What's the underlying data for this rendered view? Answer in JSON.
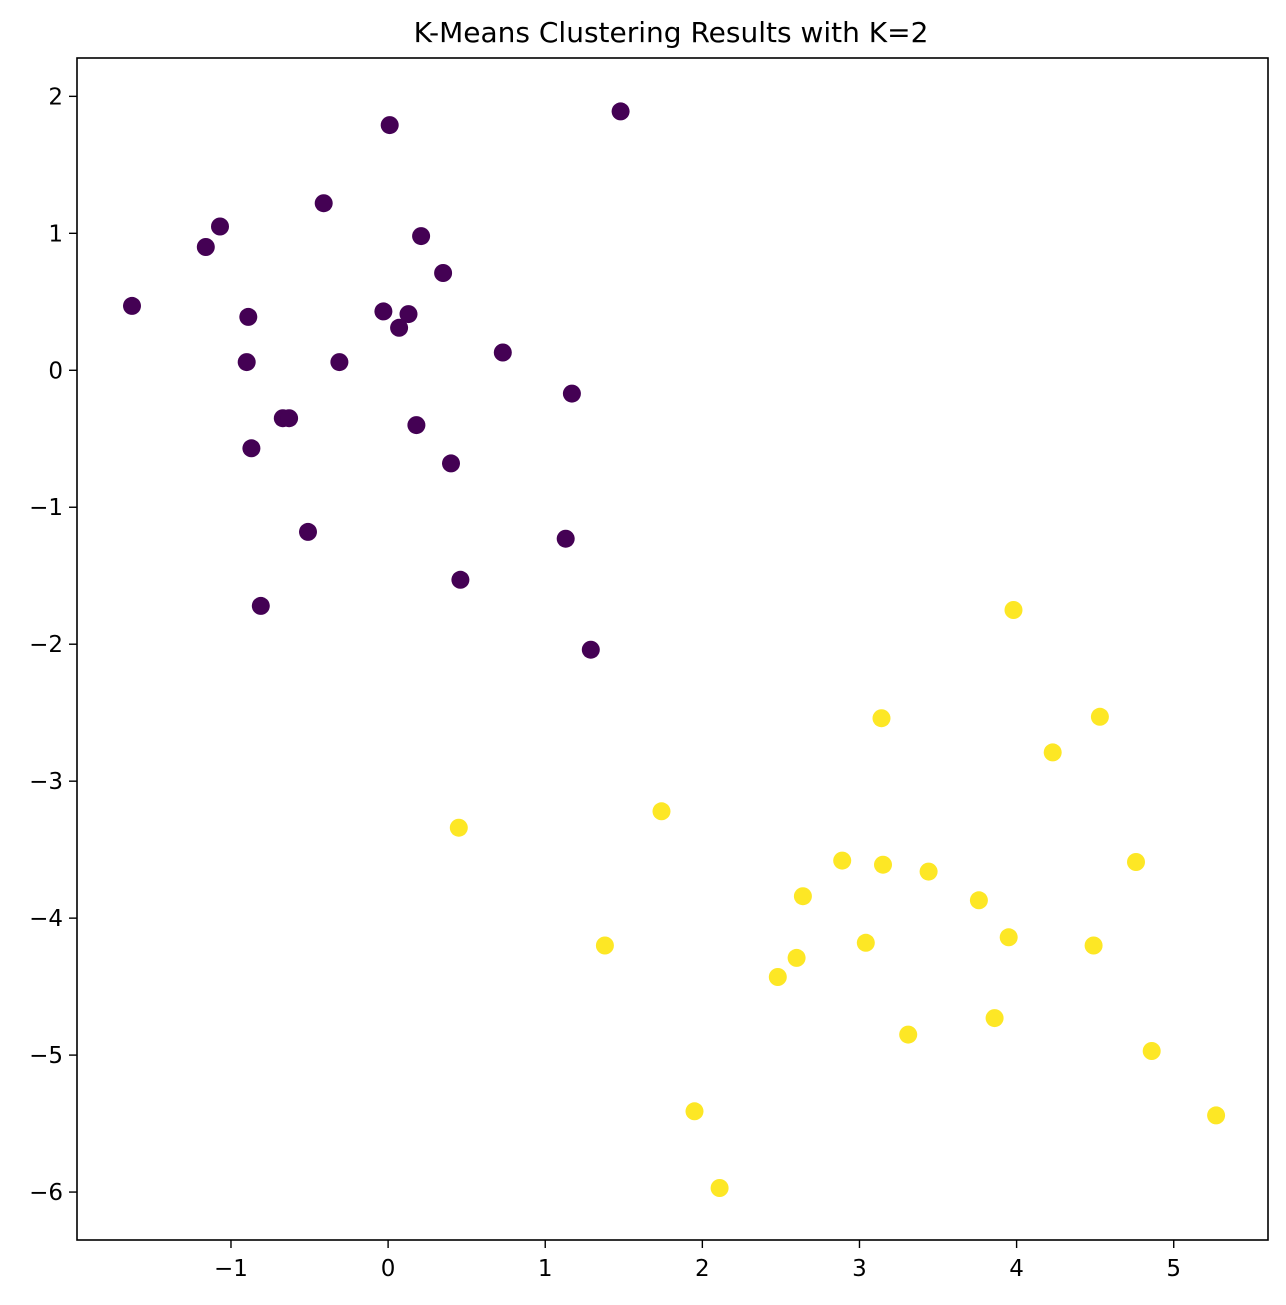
{
  "chart_data": {
    "type": "scatter",
    "title": "K-Means Clustering Results with K=2",
    "xlabel": "",
    "ylabel": "",
    "xlim": [
      -1.98,
      5.6
    ],
    "ylim": [
      -6.35,
      2.28
    ],
    "grid": false,
    "legend": "none",
    "x_ticks": [
      -1,
      0,
      1,
      2,
      3,
      4,
      5
    ],
    "x_tick_labels": [
      "−1",
      "0",
      "1",
      "2",
      "3",
      "4",
      "5"
    ],
    "y_ticks": [
      2,
      1,
      0,
      -1,
      -2,
      -3,
      -4,
      -5,
      -6
    ],
    "y_tick_labels": [
      "2",
      "1",
      "0",
      "−1",
      "−2",
      "−3",
      "−4",
      "−5",
      "−6"
    ],
    "series": [
      {
        "color": "#440154",
        "points": [
          [
            1.48,
            1.89
          ],
          [
            0.01,
            1.79
          ],
          [
            -0.41,
            1.22
          ],
          [
            -1.07,
            1.05
          ],
          [
            -1.16,
            0.9
          ],
          [
            0.21,
            0.98
          ],
          [
            0.35,
            0.71
          ],
          [
            -1.63,
            0.47
          ],
          [
            -0.89,
            0.39
          ],
          [
            -0.03,
            0.43
          ],
          [
            0.13,
            0.41
          ],
          [
            0.07,
            0.31
          ],
          [
            0.73,
            0.13
          ],
          [
            -0.9,
            0.06
          ],
          [
            -0.31,
            0.06
          ],
          [
            1.17,
            -0.17
          ],
          [
            -0.67,
            -0.35
          ],
          [
            -0.63,
            -0.35
          ],
          [
            0.18,
            -0.4
          ],
          [
            -0.87,
            -0.57
          ],
          [
            0.4,
            -0.68
          ],
          [
            -0.51,
            -1.18
          ],
          [
            1.13,
            -1.23
          ],
          [
            0.46,
            -1.53
          ],
          [
            -0.81,
            -1.72
          ],
          [
            1.29,
            -2.04
          ]
        ]
      },
      {
        "color": "#fde725",
        "points": [
          [
            3.98,
            -1.75
          ],
          [
            3.14,
            -2.54
          ],
          [
            4.53,
            -2.53
          ],
          [
            4.23,
            -2.79
          ],
          [
            1.74,
            -3.22
          ],
          [
            0.45,
            -3.34
          ],
          [
            2.89,
            -3.58
          ],
          [
            3.15,
            -3.61
          ],
          [
            3.44,
            -3.66
          ],
          [
            4.76,
            -3.59
          ],
          [
            2.64,
            -3.84
          ],
          [
            3.76,
            -3.87
          ],
          [
            3.95,
            -4.14
          ],
          [
            3.04,
            -4.18
          ],
          [
            1.38,
            -4.2
          ],
          [
            4.49,
            -4.2
          ],
          [
            2.6,
            -4.29
          ],
          [
            2.48,
            -4.43
          ],
          [
            3.31,
            -4.85
          ],
          [
            3.86,
            -4.73
          ],
          [
            4.86,
            -4.97
          ],
          [
            1.95,
            -5.41
          ],
          [
            5.27,
            -5.44
          ],
          [
            2.11,
            -5.97
          ]
        ]
      }
    ]
  }
}
